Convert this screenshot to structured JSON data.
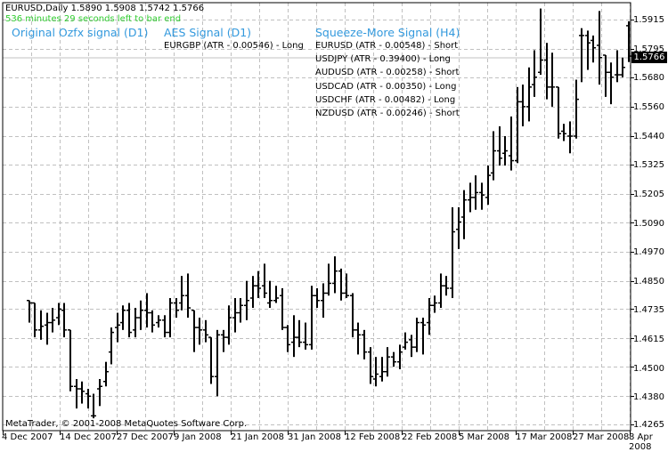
{
  "window": {
    "symbol": "EURUSD",
    "timeframe": "Daily",
    "header_text": "EURUSD,Daily  1.5890 1.5908 1.5742 1.5766",
    "ohlc": {
      "open": "1.5890",
      "high": "1.5908",
      "low": "1.5742",
      "close": "1.5766"
    },
    "timer_text": "536 minutes 29 seconds left to bar end",
    "copyright": "MetaTrader, © 2001-2008 MetaQuotes Software Corp."
  },
  "signals": {
    "ozfx": {
      "title": "Original Ozfx signal (D1)",
      "lines": []
    },
    "aes": {
      "title": "AES Signal (D1)",
      "lines": [
        "EURGBP (ATR - 0.00546) - Long"
      ]
    },
    "squeeze": {
      "title": "Squeeze-More Signal (H4)",
      "lines": [
        "EURUSD (ATR - 0.00548) - Short",
        "USDJPY (ATR - 0.39400) - Long",
        "AUDUSD (ATR - 0.00258) - Short",
        "USDCAD (ATR - 0.00350) - Long",
        "USDCHF (ATR - 0.00482) - Long",
        "NZDUSD (ATR - 0.00246) - Short"
      ]
    }
  },
  "price_axis": {
    "labels": [
      "1.5915",
      "1.5795",
      "1.5680",
      "1.5560",
      "1.5440",
      "1.5325",
      "1.5205",
      "1.5090",
      "1.4970",
      "1.4850",
      "1.4735",
      "1.4615",
      "1.4500",
      "1.4380",
      "1.4265"
    ],
    "current_bid": "1.5766"
  },
  "time_axis": {
    "labels": [
      "4 Dec 2007",
      "14 Dec 2007",
      "27 Dec 2007",
      "9 Jan 2008",
      "21 Jan 2008",
      "31 Jan 2008",
      "12 Feb 2008",
      "22 Feb 2008",
      "5 Mar 2008",
      "17 Mar 2008",
      "27 Mar 2008",
      "8 Apr 2008"
    ]
  },
  "colors": {
    "background": "#ffffff",
    "grid": "#c0c0c0",
    "bars": "#000000",
    "timer": "#32cd32",
    "signal_title": "#3399dd",
    "bid_line": "#c0c0c0"
  },
  "chart_data": {
    "type": "ohlc",
    "title": "EURUSD,Daily",
    "xlabel": "",
    "ylabel": "",
    "ylim": [
      1.4265,
      1.5975
    ],
    "grid": true,
    "y_ticks": [
      1.5915,
      1.5795,
      1.568,
      1.556,
      1.544,
      1.5325,
      1.5205,
      1.509,
      1.497,
      1.485,
      1.4735,
      1.4615,
      1.45,
      1.438,
      1.4265
    ],
    "x_tick_labels": [
      "4 Dec 2007",
      "14 Dec 2007",
      "27 Dec 2007",
      "9 Jan 2008",
      "21 Jan 2008",
      "31 Jan 2008",
      "12 Feb 2008",
      "22 Feb 2008",
      "5 Mar 2008",
      "17 Mar 2008",
      "27 Mar 2008",
      "8 Apr 2008"
    ],
    "last_bar": {
      "open": 1.589,
      "high": 1.5908,
      "low": 1.5742,
      "close": 1.5766
    },
    "bars": [
      {
        "o": 1.477,
        "h": 1.477,
        "l": 1.468,
        "c": 1.476
      },
      {
        "o": 1.476,
        "h": 1.476,
        "l": 1.462,
        "c": 1.465
      },
      {
        "o": 1.465,
        "h": 1.473,
        "l": 1.461,
        "c": 1.4665
      },
      {
        "o": 1.467,
        "h": 1.472,
        "l": 1.459,
        "c": 1.468
      },
      {
        "o": 1.468,
        "h": 1.474,
        "l": 1.464,
        "c": 1.469
      },
      {
        "o": 1.47,
        "h": 1.476,
        "l": 1.467,
        "c": 1.4735
      },
      {
        "o": 1.473,
        "h": 1.476,
        "l": 1.462,
        "c": 1.465
      },
      {
        "o": 1.465,
        "h": 1.465,
        "l": 1.44,
        "c": 1.442
      },
      {
        "o": 1.442,
        "h": 1.445,
        "l": 1.433,
        "c": 1.441
      },
      {
        "o": 1.441,
        "h": 1.444,
        "l": 1.435,
        "c": 1.44
      },
      {
        "o": 1.439,
        "h": 1.441,
        "l": 1.433,
        "c": 1.438
      },
      {
        "o": 1.43,
        "h": 1.439,
        "l": 1.429,
        "c": 1.43
      },
      {
        "o": 1.441,
        "h": 1.445,
        "l": 1.434,
        "c": 1.442
      },
      {
        "o": 1.444,
        "h": 1.452,
        "l": 1.442,
        "c": 1.448
      },
      {
        "o": 1.456,
        "h": 1.466,
        "l": 1.451,
        "c": 1.464
      },
      {
        "o": 1.466,
        "h": 1.472,
        "l": 1.46,
        "c": 1.467
      },
      {
        "o": 1.468,
        "h": 1.475,
        "l": 1.465,
        "c": 1.473
      },
      {
        "o": 1.473,
        "h": 1.476,
        "l": 1.462,
        "c": 1.464
      },
      {
        "o": 1.465,
        "h": 1.474,
        "l": 1.462,
        "c": 1.47
      },
      {
        "o": 1.47,
        "h": 1.477,
        "l": 1.465,
        "c": 1.473
      },
      {
        "o": 1.473,
        "h": 1.48,
        "l": 1.466,
        "c": 1.472
      },
      {
        "o": 1.472,
        "h": 1.473,
        "l": 1.464,
        "c": 1.467
      },
      {
        "o": 1.468,
        "h": 1.471,
        "l": 1.466,
        "c": 1.469
      },
      {
        "o": 1.469,
        "h": 1.471,
        "l": 1.462,
        "c": 1.464
      },
      {
        "o": 1.464,
        "h": 1.478,
        "l": 1.462,
        "c": 1.476
      },
      {
        "o": 1.476,
        "h": 1.478,
        "l": 1.47,
        "c": 1.473
      },
      {
        "o": 1.476,
        "h": 1.487,
        "l": 1.473,
        "c": 1.479
      },
      {
        "o": 1.479,
        "h": 1.488,
        "l": 1.47,
        "c": 1.474
      },
      {
        "o": 1.473,
        "h": 1.473,
        "l": 1.456,
        "c": 1.466
      },
      {
        "o": 1.466,
        "h": 1.47,
        "l": 1.459,
        "c": 1.465
      },
      {
        "o": 1.465,
        "h": 1.469,
        "l": 1.46,
        "c": 1.463
      },
      {
        "o": 1.462,
        "h": 1.462,
        "l": 1.443,
        "c": 1.446
      },
      {
        "o": 1.446,
        "h": 1.465,
        "l": 1.438,
        "c": 1.463
      },
      {
        "o": 1.463,
        "h": 1.465,
        "l": 1.456,
        "c": 1.462
      },
      {
        "o": 1.462,
        "h": 1.475,
        "l": 1.459,
        "c": 1.47
      },
      {
        "o": 1.47,
        "h": 1.478,
        "l": 1.464,
        "c": 1.472
      },
      {
        "o": 1.472,
        "h": 1.478,
        "l": 1.468,
        "c": 1.475
      },
      {
        "o": 1.475,
        "h": 1.485,
        "l": 1.469,
        "c": 1.477
      },
      {
        "o": 1.478,
        "h": 1.487,
        "l": 1.474,
        "c": 1.483
      },
      {
        "o": 1.483,
        "h": 1.489,
        "l": 1.478,
        "c": 1.482
      },
      {
        "o": 1.483,
        "h": 1.492,
        "l": 1.478,
        "c": 1.48
      },
      {
        "o": 1.476,
        "h": 1.485,
        "l": 1.474,
        "c": 1.477
      },
      {
        "o": 1.477,
        "h": 1.483,
        "l": 1.476,
        "c": 1.478
      },
      {
        "o": 1.479,
        "h": 1.482,
        "l": 1.465,
        "c": 1.466
      },
      {
        "o": 1.466,
        "h": 1.467,
        "l": 1.456,
        "c": 1.459
      },
      {
        "o": 1.46,
        "h": 1.471,
        "l": 1.454,
        "c": 1.462
      },
      {
        "o": 1.462,
        "h": 1.469,
        "l": 1.458,
        "c": 1.46
      },
      {
        "o": 1.46,
        "h": 1.468,
        "l": 1.457,
        "c": 1.459
      },
      {
        "o": 1.459,
        "h": 1.483,
        "l": 1.457,
        "c": 1.479
      },
      {
        "o": 1.479,
        "h": 1.482,
        "l": 1.474,
        "c": 1.477
      },
      {
        "o": 1.477,
        "h": 1.484,
        "l": 1.47,
        "c": 1.48
      },
      {
        "o": 1.48,
        "h": 1.492,
        "l": 1.479,
        "c": 1.484
      },
      {
        "o": 1.484,
        "h": 1.495,
        "l": 1.48,
        "c": 1.489
      },
      {
        "o": 1.489,
        "h": 1.49,
        "l": 1.477,
        "c": 1.48
      },
      {
        "o": 1.48,
        "h": 1.488,
        "l": 1.478,
        "c": 1.479
      },
      {
        "o": 1.479,
        "h": 1.48,
        "l": 1.462,
        "c": 1.465
      },
      {
        "o": 1.465,
        "h": 1.468,
        "l": 1.455,
        "c": 1.463
      },
      {
        "o": 1.463,
        "h": 1.465,
        "l": 1.453,
        "c": 1.456
      },
      {
        "o": 1.456,
        "h": 1.458,
        "l": 1.443,
        "c": 1.446
      },
      {
        "o": 1.445,
        "h": 1.454,
        "l": 1.442,
        "c": 1.447
      },
      {
        "o": 1.446,
        "h": 1.454,
        "l": 1.444,
        "c": 1.448
      },
      {
        "o": 1.448,
        "h": 1.458,
        "l": 1.446,
        "c": 1.454
      },
      {
        "o": 1.454,
        "h": 1.456,
        "l": 1.45,
        "c": 1.452
      },
      {
        "o": 1.452,
        "h": 1.459,
        "l": 1.449,
        "c": 1.456
      },
      {
        "o": 1.458,
        "h": 1.464,
        "l": 1.457,
        "c": 1.46
      },
      {
        "o": 1.461,
        "h": 1.463,
        "l": 1.454,
        "c": 1.458
      },
      {
        "o": 1.458,
        "h": 1.47,
        "l": 1.456,
        "c": 1.468
      },
      {
        "o": 1.468,
        "h": 1.47,
        "l": 1.455,
        "c": 1.467
      },
      {
        "o": 1.468,
        "h": 1.478,
        "l": 1.463,
        "c": 1.475
      },
      {
        "o": 1.475,
        "h": 1.479,
        "l": 1.472,
        "c": 1.476
      },
      {
        "o": 1.476,
        "h": 1.488,
        "l": 1.474,
        "c": 1.483
      },
      {
        "o": 1.483,
        "h": 1.487,
        "l": 1.479,
        "c": 1.482
      },
      {
        "o": 1.482,
        "h": 1.515,
        "l": 1.478,
        "c": 1.505
      },
      {
        "o": 1.506,
        "h": 1.515,
        "l": 1.498,
        "c": 1.509
      },
      {
        "o": 1.511,
        "h": 1.522,
        "l": 1.502,
        "c": 1.518
      },
      {
        "o": 1.518,
        "h": 1.525,
        "l": 1.513,
        "c": 1.519
      },
      {
        "o": 1.519,
        "h": 1.528,
        "l": 1.514,
        "c": 1.521
      },
      {
        "o": 1.521,
        "h": 1.525,
        "l": 1.514,
        "c": 1.52
      },
      {
        "o": 1.519,
        "h": 1.532,
        "l": 1.516,
        "c": 1.528
      },
      {
        "o": 1.529,
        "h": 1.546,
        "l": 1.526,
        "c": 1.538
      },
      {
        "o": 1.538,
        "h": 1.548,
        "l": 1.532,
        "c": 1.535
      },
      {
        "o": 1.537,
        "h": 1.544,
        "l": 1.532,
        "c": 1.538
      },
      {
        "o": 1.536,
        "h": 1.552,
        "l": 1.53,
        "c": 1.534
      },
      {
        "o": 1.534,
        "h": 1.564,
        "l": 1.533,
        "c": 1.558
      },
      {
        "o": 1.558,
        "h": 1.565,
        "l": 1.548,
        "c": 1.556
      },
      {
        "o": 1.556,
        "h": 1.572,
        "l": 1.55,
        "c": 1.564
      },
      {
        "o": 1.565,
        "h": 1.579,
        "l": 1.56,
        "c": 1.568
      },
      {
        "o": 1.57,
        "h": 1.596,
        "l": 1.569,
        "c": 1.575
      },
      {
        "o": 1.575,
        "h": 1.582,
        "l": 1.559,
        "c": 1.564
      },
      {
        "o": 1.564,
        "h": 1.578,
        "l": 1.556,
        "c": 1.564
      },
      {
        "o": 1.564,
        "h": 1.564,
        "l": 1.543,
        "c": 1.545
      },
      {
        "o": 1.546,
        "h": 1.549,
        "l": 1.542,
        "c": 1.545
      },
      {
        "o": 1.544,
        "h": 1.55,
        "l": 1.537,
        "c": 1.544
      },
      {
        "o": 1.544,
        "h": 1.567,
        "l": 1.543,
        "c": 1.559
      },
      {
        "o": 1.585,
        "h": 1.588,
        "l": 1.566,
        "c": 1.585
      },
      {
        "o": 1.585,
        "h": 1.587,
        "l": 1.571,
        "c": 1.582
      },
      {
        "o": 1.583,
        "h": 1.585,
        "l": 1.574,
        "c": 1.58
      },
      {
        "o": 1.581,
        "h": 1.595,
        "l": 1.565,
        "c": 1.576
      },
      {
        "o": 1.577,
        "h": 1.577,
        "l": 1.56,
        "c": 1.57
      },
      {
        "o": 1.57,
        "h": 1.574,
        "l": 1.557,
        "c": 1.568
      },
      {
        "o": 1.569,
        "h": 1.579,
        "l": 1.566,
        "c": 1.569
      },
      {
        "o": 1.569,
        "h": 1.576,
        "l": 1.568,
        "c": 1.572
      },
      {
        "o": 1.589,
        "h": 1.5908,
        "l": 1.5742,
        "c": 1.5766
      }
    ]
  }
}
